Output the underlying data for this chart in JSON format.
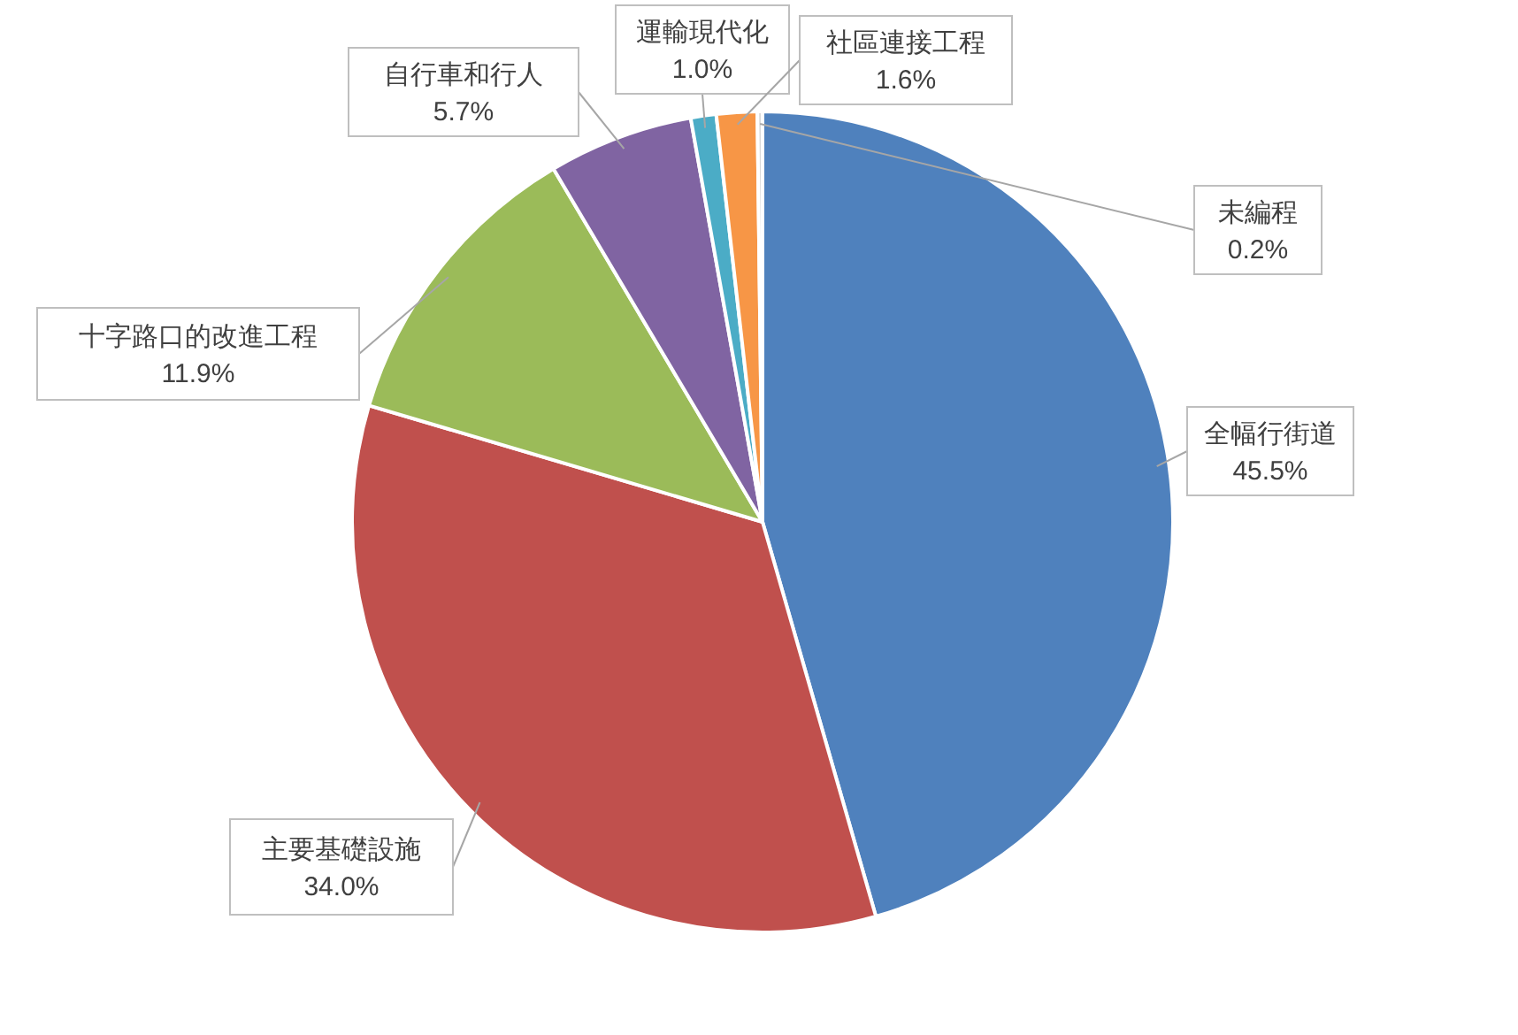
{
  "chart_data": {
    "type": "pie",
    "categories": [
      "全幅行街道",
      "主要基礎設施",
      "十字路口的改進工程",
      "自行車和行人",
      "運輸現代化",
      "社區連接工程",
      "未編程"
    ],
    "values": [
      45.5,
      34.0,
      11.9,
      5.7,
      1.0,
      1.6,
      0.2
    ],
    "value_labels": [
      "45.5%",
      "34.0%",
      "11.9%",
      "5.7%",
      "1.0%",
      "1.6%",
      "0.2%"
    ],
    "colors": [
      "#4f81bd",
      "#c0504d",
      "#9bbb59",
      "#8064a2",
      "#4bacc6",
      "#f79646",
      "#d9d9d9"
    ]
  }
}
